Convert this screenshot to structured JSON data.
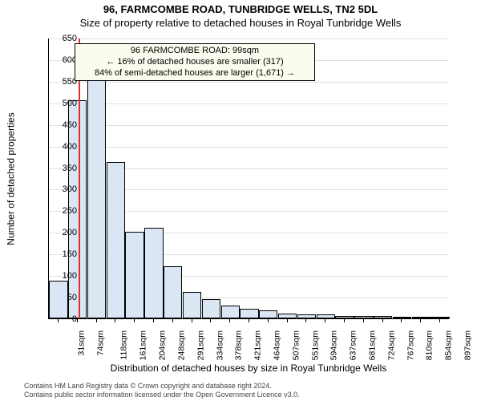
{
  "title": "96, FARMCOMBE ROAD, TUNBRIDGE WELLS, TN2 5DL",
  "subtitle": "Size of property relative to detached houses in Royal Tunbridge Wells",
  "yaxis_title": "Number of detached properties",
  "xaxis_title": "Distribution of detached houses by size in Royal Tunbridge Wells",
  "chart": {
    "type": "histogram",
    "ylim": [
      0,
      650
    ],
    "yticks": [
      0,
      50,
      100,
      150,
      200,
      250,
      300,
      350,
      400,
      450,
      500,
      550,
      600,
      650
    ],
    "xtick_labels": [
      "31sqm",
      "74sqm",
      "118sqm",
      "161sqm",
      "204sqm",
      "248sqm",
      "291sqm",
      "334sqm",
      "378sqm",
      "421sqm",
      "464sqm",
      "507sqm",
      "551sqm",
      "594sqm",
      "637sqm",
      "681sqm",
      "724sqm",
      "767sqm",
      "810sqm",
      "854sqm",
      "897sqm"
    ],
    "bar_color": "#dbe6f5",
    "bar_border_color": "#000000",
    "grid_color": "#e0e0e0",
    "background_color": "#ffffff",
    "marker_color": "#e03030",
    "marker_value": 99,
    "x_min": 31,
    "x_bin_width_sqm": 43.3,
    "bar_width_fill": 0.98,
    "values": [
      88,
      505,
      555,
      362,
      200,
      210,
      120,
      62,
      45,
      30,
      22,
      18,
      12,
      10,
      10,
      6,
      5,
      5,
      3,
      3,
      3
    ],
    "tick_fontsize": 11
  },
  "callout": {
    "bg": "#fbfbee",
    "line1": "96 FARMCOMBE ROAD: 99sqm",
    "line2": "← 16% of detached houses are smaller (317)",
    "line3": "84% of semi-detached houses are larger (1,671) →"
  },
  "attribution": {
    "line1": "Contains HM Land Registry data © Crown copyright and database right 2024.",
    "line2": "Contains public sector information licensed under the Open Government Licence v3.0."
  }
}
